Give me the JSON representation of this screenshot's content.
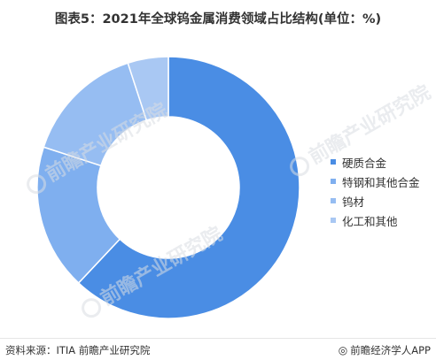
{
  "chart_data": {
    "type": "pie",
    "title": "图表5：2021年全球钨金属消费领域占比结构(单位：%)",
    "categories": [
      "硬质合金",
      "特钢和其他合金",
      "钨材",
      "化工和其他"
    ],
    "values": [
      62,
      18,
      15,
      5
    ],
    "colors": [
      "#4a8de4",
      "#7fafef",
      "#96bdf2",
      "#a9c8f3"
    ],
    "donut": true,
    "legend_position": "right"
  },
  "footer": {
    "source": "资料来源：ITIA 前瞻产业研究院",
    "brand": "前瞻经济学人APP",
    "brand_icon": "brand-logo-icon"
  },
  "watermark": {
    "text": "前瞻产业研究院"
  }
}
